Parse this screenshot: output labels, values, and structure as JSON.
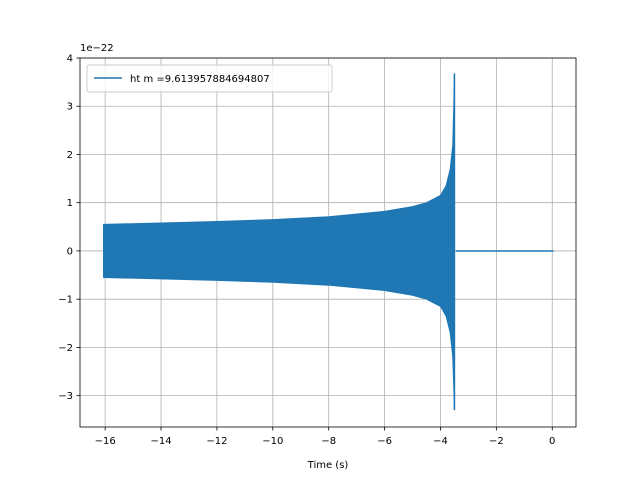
{
  "chart_data": {
    "type": "line",
    "title": "",
    "xlabel": "Time (s)",
    "ylabel": "",
    "y_offset_label": "1e−22",
    "xlim": [
      -16.9,
      0.85
    ],
    "ylim": [
      -3.65,
      4.0
    ],
    "x_ticks": [
      {
        "value": -16,
        "label": "−16"
      },
      {
        "value": -14,
        "label": "−14"
      },
      {
        "value": -12,
        "label": "−12"
      },
      {
        "value": -10,
        "label": "−10"
      },
      {
        "value": -8,
        "label": "−8"
      },
      {
        "value": -6,
        "label": "−6"
      },
      {
        "value": -4,
        "label": "−4"
      },
      {
        "value": -2,
        "label": "−2"
      },
      {
        "value": 0,
        "label": "0"
      }
    ],
    "y_ticks": [
      {
        "value": -3,
        "label": "−3"
      },
      {
        "value": -2,
        "label": "−2"
      },
      {
        "value": -1,
        "label": "−1"
      },
      {
        "value": 0,
        "label": "0"
      },
      {
        "value": 1,
        "label": "1"
      },
      {
        "value": 2,
        "label": "2"
      },
      {
        "value": 3,
        "label": "3"
      },
      {
        "value": 4,
        "label": "4"
      }
    ],
    "grid": true,
    "legend_position": "top-left",
    "series": [
      {
        "name": "ht m =9.613957884694807",
        "color": "#1f77b4",
        "envelope_upper": [
          [
            -16.05,
            0.55
          ],
          [
            -14,
            0.58
          ],
          [
            -12,
            0.61
          ],
          [
            -10,
            0.65
          ],
          [
            -8,
            0.71
          ],
          [
            -6,
            0.82
          ],
          [
            -5,
            0.92
          ],
          [
            -4.5,
            1.0
          ],
          [
            -4,
            1.15
          ],
          [
            -3.8,
            1.35
          ],
          [
            -3.65,
            1.7
          ],
          [
            -3.56,
            2.2
          ],
          [
            -3.52,
            3.1
          ],
          [
            -3.5,
            3.68
          ]
        ],
        "envelope_lower": [
          [
            -16.05,
            -0.55
          ],
          [
            -14,
            -0.58
          ],
          [
            -12,
            -0.61
          ],
          [
            -10,
            -0.65
          ],
          [
            -8,
            -0.71
          ],
          [
            -6,
            -0.82
          ],
          [
            -5,
            -0.92
          ],
          [
            -4.5,
            -1.0
          ],
          [
            -4,
            -1.15
          ],
          [
            -3.8,
            -1.35
          ],
          [
            -3.65,
            -1.7
          ],
          [
            -3.56,
            -2.2
          ],
          [
            -3.52,
            -2.9
          ],
          [
            -3.5,
            -3.3
          ]
        ],
        "tail": [
          [
            -3.45,
            0.0
          ],
          [
            0.05,
            0.0
          ]
        ]
      }
    ]
  }
}
